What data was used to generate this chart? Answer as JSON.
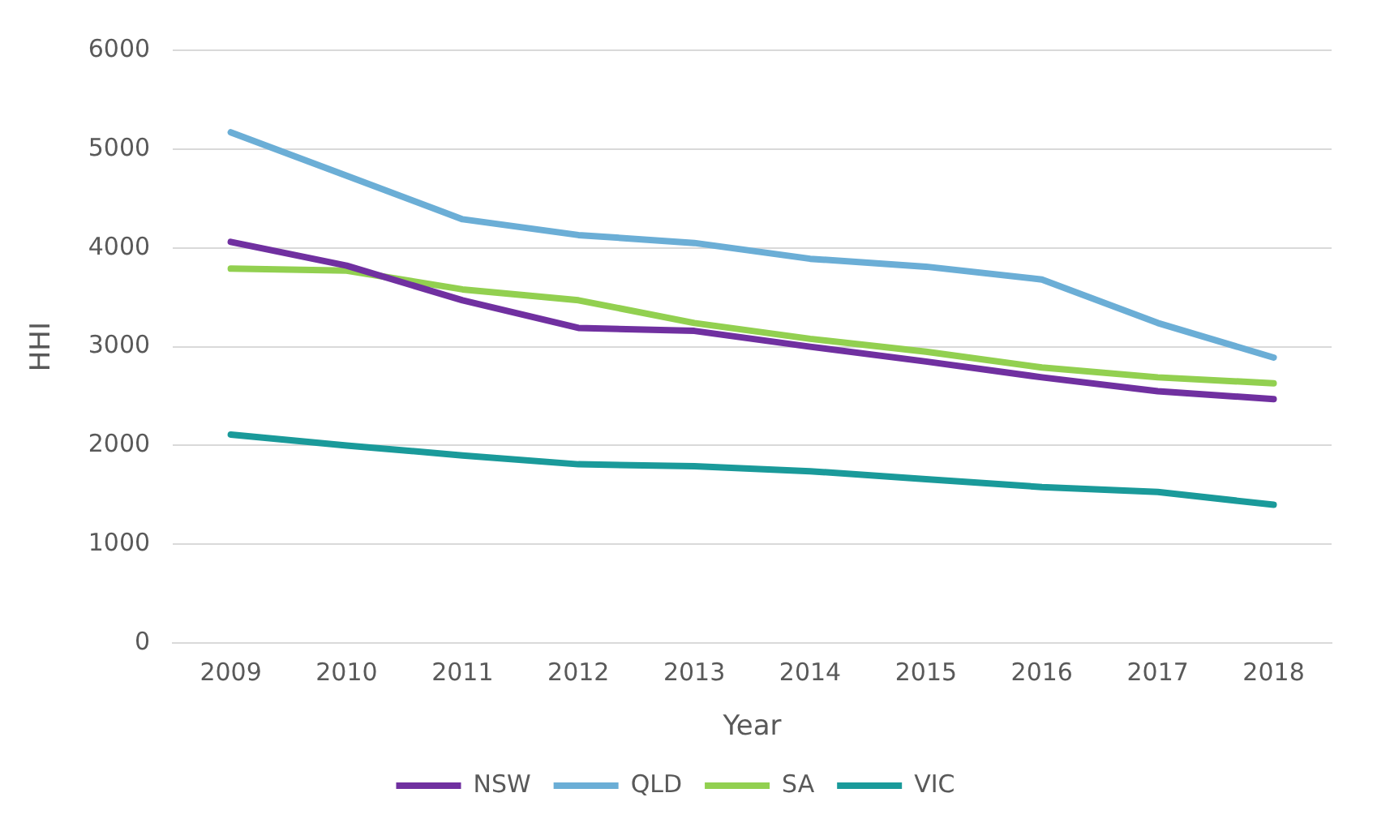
{
  "chart_data": {
    "type": "line",
    "xlabel": "Year",
    "ylabel": "HHI",
    "categories": [
      "2009",
      "2010",
      "2011",
      "2012",
      "2013",
      "2014",
      "2015",
      "2016",
      "2017",
      "2018"
    ],
    "series": [
      {
        "name": "NSW",
        "color": "#7030a0",
        "values": [
          4060,
          3820,
          3470,
          3190,
          3160,
          3000,
          2850,
          2690,
          2550,
          2470
        ]
      },
      {
        "name": "QLD",
        "color": "#6baed6",
        "values": [
          5170,
          4730,
          4290,
          4130,
          4050,
          3890,
          3810,
          3680,
          3240,
          2890
        ]
      },
      {
        "name": "SA",
        "color": "#92d050",
        "values": [
          3790,
          3770,
          3580,
          3470,
          3240,
          3080,
          2950,
          2790,
          2690,
          2630
        ]
      },
      {
        "name": "VIC",
        "color": "#1a9a9a",
        "values": [
          2110,
          2000,
          1900,
          1810,
          1790,
          1740,
          1660,
          1580,
          1530,
          1400
        ]
      }
    ],
    "ylim": [
      0,
      6000
    ],
    "yticks": [
      0,
      1000,
      2000,
      3000,
      4000,
      5000,
      6000
    ],
    "grid": "y",
    "legend": "bottom",
    "marker": "none",
    "line_style": "solid"
  }
}
